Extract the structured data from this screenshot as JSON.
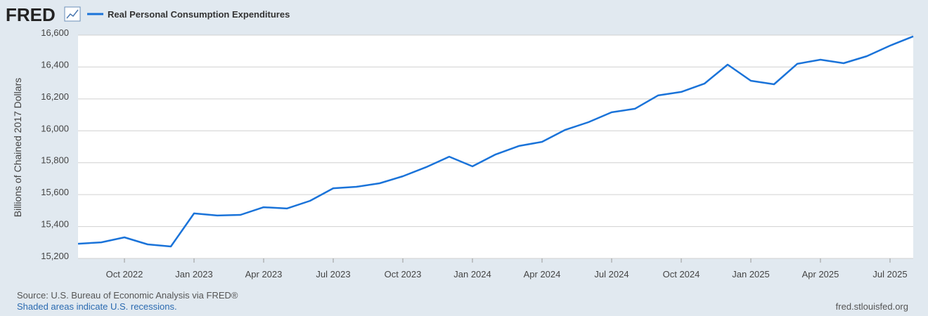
{
  "brand": "FRED",
  "chart_data": {
    "type": "line",
    "y_label": "Billions of Chained 2017 Dollars",
    "x": [
      "2022-08",
      "2022-09",
      "2022-10",
      "2022-11",
      "2022-12",
      "2023-01",
      "2023-02",
      "2023-03",
      "2023-04",
      "2023-05",
      "2023-06",
      "2023-07",
      "2023-08",
      "2023-09",
      "2023-10",
      "2023-11",
      "2023-12",
      "2024-01",
      "2024-02",
      "2024-03",
      "2024-04",
      "2024-05",
      "2024-06",
      "2024-07",
      "2024-08",
      "2024-09",
      "2024-10",
      "2024-11",
      "2024-12",
      "2025-01",
      "2025-02",
      "2025-03",
      "2025-04",
      "2025-05",
      "2025-06",
      "2025-07",
      "2025-08"
    ],
    "series": [
      {
        "name": "Real Personal Consumption Expenditures",
        "color": "#1a73d9",
        "values": [
          15292,
          15301,
          15332,
          15288,
          15275,
          15482,
          15469,
          15473,
          15521,
          15513,
          15561,
          15640,
          15649,
          15671,
          15715,
          15772,
          15838,
          15777,
          15852,
          15905,
          15931,
          16006,
          16054,
          16116,
          16138,
          16222,
          16244,
          16296,
          16415,
          16314,
          16292,
          16420,
          16446,
          16424,
          16468,
          16534,
          16592
        ]
      }
    ],
    "xlim": [
      "2022-08",
      "2025-08"
    ],
    "xticks": [
      {
        "value": "2022-10",
        "label": "Oct 2022"
      },
      {
        "value": "2023-01",
        "label": "Jan 2023"
      },
      {
        "value": "2023-04",
        "label": "Apr 2023"
      },
      {
        "value": "2023-07",
        "label": "Jul 2023"
      },
      {
        "value": "2023-10",
        "label": "Oct 2023"
      },
      {
        "value": "2024-01",
        "label": "Jan 2024"
      },
      {
        "value": "2024-04",
        "label": "Apr 2024"
      },
      {
        "value": "2024-07",
        "label": "Jul 2024"
      },
      {
        "value": "2024-10",
        "label": "Oct 2024"
      },
      {
        "value": "2025-01",
        "label": "Jan 2025"
      },
      {
        "value": "2025-04",
        "label": "Apr 2025"
      },
      {
        "value": "2025-07",
        "label": "Jul 2025"
      }
    ],
    "ylim": [
      15200,
      16600
    ],
    "yticks": [
      {
        "value": 15200,
        "label": "15,200"
      },
      {
        "value": 15400,
        "label": "15,400"
      },
      {
        "value": 15600,
        "label": "15,600"
      },
      {
        "value": 15800,
        "label": "15,800"
      },
      {
        "value": 16000,
        "label": "16,000"
      },
      {
        "value": 16200,
        "label": "16,200"
      },
      {
        "value": 16400,
        "label": "16,400"
      },
      {
        "value": 16600,
        "label": "16,600"
      }
    ],
    "grid": true,
    "source": "Source: U.S. Bureau of Economic Analysis via FRED®",
    "note": "Shaded areas indicate U.S. recessions.",
    "url": "fred.stlouisfed.org"
  }
}
